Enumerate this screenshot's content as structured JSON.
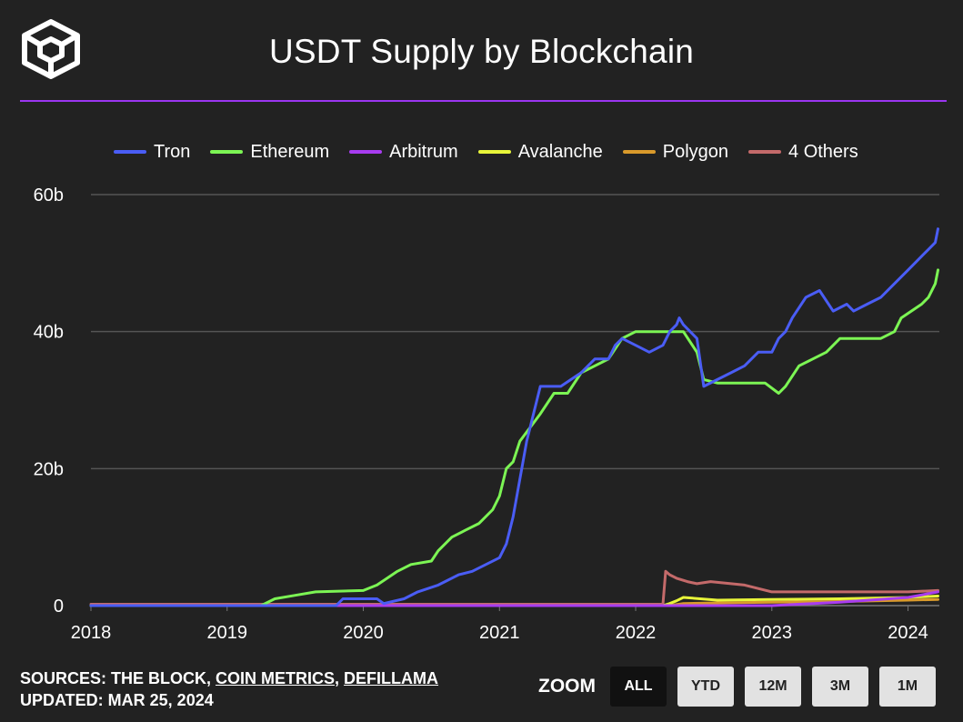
{
  "title": "USDT Supply by Blockchain",
  "colors": {
    "background": "#222222",
    "accent_rule": "#9b35f0",
    "grid": "#555555"
  },
  "logo": {
    "icon": "cube-logo-icon"
  },
  "footer": {
    "sources_prefix": "SOURCES: THE BLOCK, ",
    "source_links": [
      "COIN METRICS",
      "DEFILLAMA"
    ],
    "separator": ", ",
    "updated": "UPDATED: MAR 25, 2024"
  },
  "zoom": {
    "label": "ZOOM",
    "buttons": [
      "ALL",
      "YTD",
      "12M",
      "3M",
      "1M"
    ],
    "active": "ALL"
  },
  "chart_data": {
    "type": "line",
    "title": "USDT Supply by Blockchain",
    "x_ticks": [
      "2018",
      "2019",
      "2020",
      "2021",
      "2022",
      "2023",
      "2024"
    ],
    "y_ticks": [
      "0",
      "20b",
      "40b",
      "60b"
    ],
    "ylim": [
      0,
      60
    ],
    "xlim": [
      2018.0,
      2024.23
    ],
    "grid": true,
    "legend_position": "top",
    "series": [
      {
        "name": "Tron",
        "color": "#4a5df5",
        "x": [
          2018.0,
          2019.8,
          2019.85,
          2020.1,
          2020.15,
          2020.3,
          2020.4,
          2020.55,
          2020.6,
          2020.7,
          2020.8,
          2020.9,
          2021.0,
          2021.05,
          2021.1,
          2021.2,
          2021.3,
          2021.4,
          2021.45,
          2021.6,
          2021.7,
          2021.8,
          2021.85,
          2021.9,
          2022.0,
          2022.1,
          2022.2,
          2022.25,
          2022.3,
          2022.32,
          2022.35,
          2022.45,
          2022.5,
          2022.6,
          2022.7,
          2022.8,
          2022.9,
          2023.0,
          2023.05,
          2023.1,
          2023.15,
          2023.25,
          2023.35,
          2023.45,
          2023.55,
          2023.6,
          2023.7,
          2023.8,
          2023.9,
          2024.0,
          2024.1,
          2024.15,
          2024.2,
          2024.22
        ],
        "values": [
          0,
          0,
          1,
          1,
          0.3,
          1,
          2,
          3,
          3.5,
          4.5,
          5,
          6,
          7,
          9,
          13,
          24,
          32,
          32,
          32,
          34,
          36,
          36,
          38,
          39,
          38,
          37,
          38,
          40,
          41,
          42,
          41,
          39,
          32,
          33,
          34,
          35,
          37,
          37,
          39,
          40,
          42,
          45,
          46,
          43,
          44,
          43,
          44,
          45,
          47,
          49,
          51,
          52,
          53,
          55
        ]
      },
      {
        "name": "Ethereum",
        "color": "#7cf554",
        "x": [
          2018.0,
          2019.25,
          2019.35,
          2019.5,
          2019.65,
          2020.0,
          2020.1,
          2020.25,
          2020.35,
          2020.5,
          2020.55,
          2020.65,
          2020.75,
          2020.85,
          2020.95,
          2021.0,
          2021.05,
          2021.1,
          2021.15,
          2021.3,
          2021.4,
          2021.5,
          2021.6,
          2021.8,
          2021.9,
          2022.0,
          2022.1,
          2022.2,
          2022.35,
          2022.45,
          2022.5,
          2022.6,
          2022.8,
          2022.95,
          2023.05,
          2023.1,
          2023.2,
          2023.3,
          2023.4,
          2023.5,
          2023.6,
          2023.8,
          2023.9,
          2023.95,
          2024.1,
          2024.15,
          2024.2,
          2024.22
        ],
        "values": [
          0,
          0,
          1,
          1.5,
          2,
          2.2,
          3,
          5,
          6,
          6.5,
          8,
          10,
          11,
          12,
          14,
          16,
          20,
          21,
          24,
          28,
          31,
          31,
          34,
          36,
          39,
          40,
          40,
          40,
          40,
          37,
          33,
          32.5,
          32.5,
          32.5,
          31,
          32,
          35,
          36,
          37,
          39,
          39,
          39,
          40,
          42,
          44,
          45,
          47,
          49
        ]
      },
      {
        "name": "Arbitrum",
        "color": "#a83cf0",
        "x": [
          2018.0,
          2023.0,
          2023.5,
          2024.0,
          2024.22
        ],
        "values": [
          0,
          0,
          0.5,
          1.2,
          2
        ]
      },
      {
        "name": "Avalanche",
        "color": "#e8f53a",
        "x": [
          2018.0,
          2022.2,
          2022.25,
          2022.3,
          2022.35,
          2022.6,
          2023.0,
          2023.5,
          2024.0,
          2024.22
        ],
        "values": [
          0,
          0,
          0.3,
          0.7,
          1.2,
          0.8,
          0.9,
          1.0,
          1.2,
          1.4
        ]
      },
      {
        "name": "Polygon",
        "color": "#d99a2b",
        "x": [
          2018.0,
          2022.25,
          2022.35,
          2022.6,
          2023.0,
          2023.5,
          2024.0,
          2024.22
        ],
        "values": [
          0,
          0,
          0.3,
          0.4,
          0.5,
          0.6,
          0.8,
          0.9
        ]
      },
      {
        "name": "4 Others",
        "color": "#c46a6a",
        "x": [
          2018.0,
          2022.2,
          2022.22,
          2022.25,
          2022.3,
          2022.38,
          2022.45,
          2022.55,
          2022.7,
          2022.8,
          2022.9,
          2023.0,
          2023.5,
          2024.0,
          2024.22
        ],
        "values": [
          0.2,
          0.2,
          5,
          4.5,
          4,
          3.5,
          3.2,
          3.5,
          3.2,
          3,
          2.5,
          2,
          2,
          2,
          2.2
        ]
      }
    ]
  }
}
